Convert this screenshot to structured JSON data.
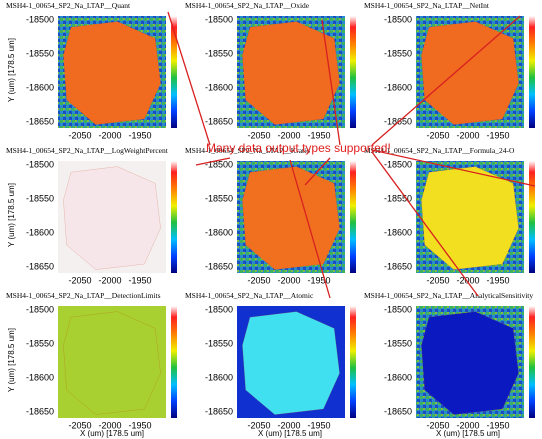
{
  "annotation": "Many data output types supported!",
  "y_axis_label": "Y (um)  [178.5 um]",
  "x_axis_label": "X (um)  [178.5 um]",
  "yticks": [
    -18500,
    -18550,
    -18600,
    -18650
  ],
  "xticks": [
    -2050,
    -2000,
    -1950
  ],
  "panels": [
    {
      "title": "MSH4-1_00654_SP2_Na_LTAP__Quant"
    },
    {
      "title": "MSH4-1_00654_SP2_Na_LTAP__Oxide"
    },
    {
      "title": "MSH4-1_00654_SP2_Na_LTAP__NetInt"
    },
    {
      "title": "MSH4-1_00654_SP2_Na_LTAP__LogWeightPercent"
    },
    {
      "title": "MSH4-1_00654_SP2_Na_LTAP__Kratio"
    },
    {
      "title": "MSH4-1_00654_SP2_Na_LTAP__Formula_24-O"
    },
    {
      "title": "MSH4-1_00654_SP2_Na_LTAP__DetectionLimits"
    },
    {
      "title": "MSH4-1_00654_SP2_Na_LTAP__Atomic"
    },
    {
      "title": "MSH4-1_00654_SP2_Na_LTAP__AnalyticalSensitivity"
    }
  ]
}
